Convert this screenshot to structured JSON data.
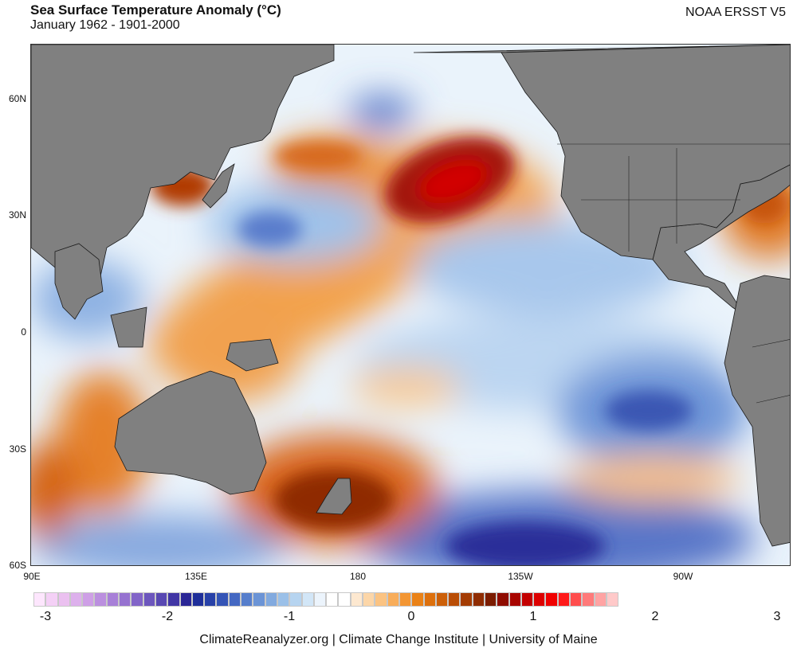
{
  "header": {
    "title": "Sea Surface Temperature Anomaly (°C)",
    "subtitle": "January 1962 - 1901-2000",
    "source": "NOAA ERSST V5"
  },
  "map": {
    "lat_labels": [
      "60N",
      "30N",
      "0",
      "30S",
      "60S"
    ],
    "lon_labels": [
      "90E",
      "135E",
      "180",
      "135W",
      "90W"
    ],
    "land_color": "#808080",
    "ocean_base_color": "#ffffff"
  },
  "colorbar": {
    "ticks": [
      "-3",
      "-2",
      "-1",
      "0",
      "1",
      "2",
      "3"
    ],
    "colors": [
      "#fde6fd",
      "#f4d0f6",
      "#ebc0f0",
      "#ddb0ec",
      "#ce9fe6",
      "#bb8fdf",
      "#a880d8",
      "#9672d0",
      "#8264c8",
      "#6c56bd",
      "#5848b2",
      "#4136a5",
      "#2a2696",
      "#1f2f9a",
      "#2841a8",
      "#3454b6",
      "#4468c2",
      "#567ecc",
      "#6b94d6",
      "#82aadf",
      "#9bc0e8",
      "#b6d4f0",
      "#d2e6f7",
      "#ecf4fc",
      "#ffffff",
      "#ffffff",
      "#fde8d0",
      "#fcd6a8",
      "#fbc382",
      "#f8ad5a",
      "#f39633",
      "#ea8217",
      "#dd700d",
      "#cc5f08",
      "#b94d05",
      "#a43c03",
      "#8f2c02",
      "#7b1c00",
      "#8f0c00",
      "#a80500",
      "#c30000",
      "#dd0000",
      "#f00000",
      "#ff1a1a",
      "#ff4d4d",
      "#ff7a7a",
      "#ffa3a3",
      "#ffc9c9"
    ]
  },
  "footer": {
    "credit": "ClimateReanalyzer.org | Climate Change Institute | University of Maine"
  }
}
